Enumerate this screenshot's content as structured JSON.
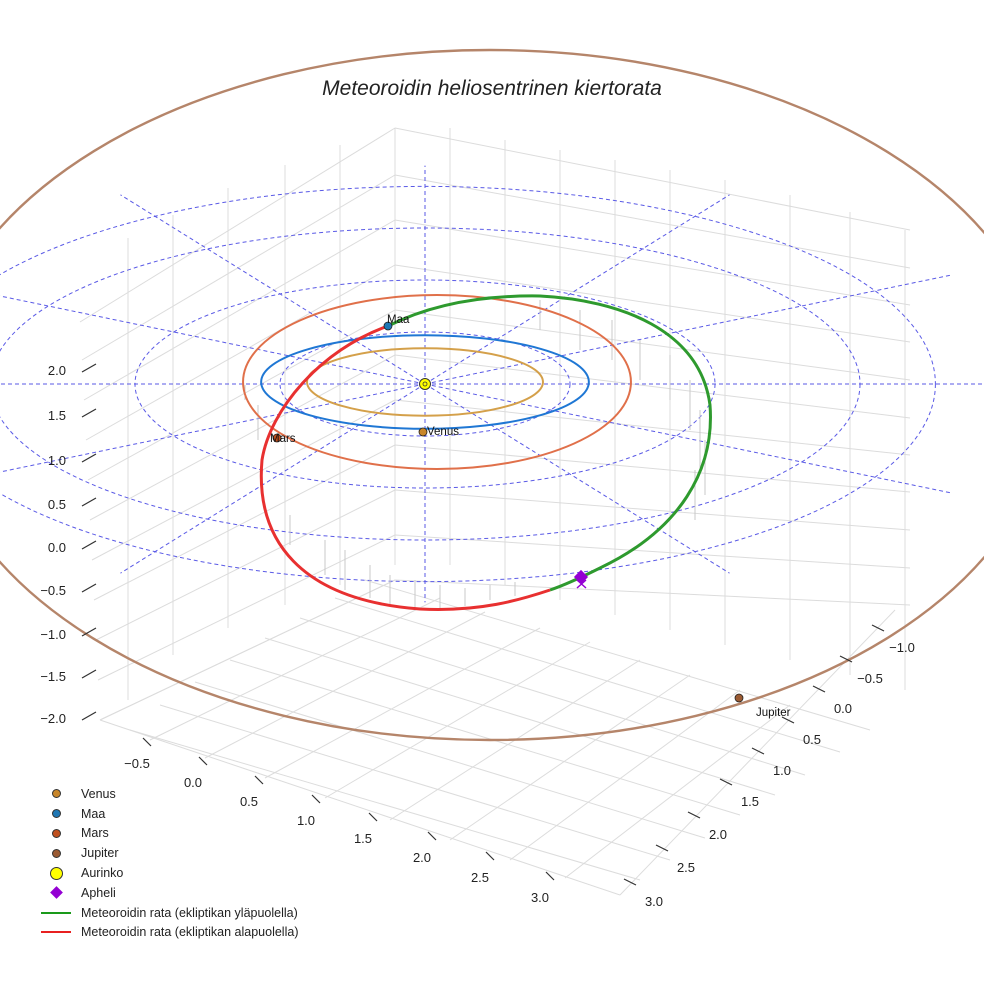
{
  "chart_data": {
    "type": "3d-orbit",
    "title": "Meteoroidin heliosentrinen kiertorata",
    "axes": {
      "x": {
        "ticks": [
          "−0.5",
          "0.0",
          "0.5",
          "1.0",
          "1.5",
          "2.0",
          "2.5",
          "3.0"
        ]
      },
      "y": {
        "ticks": [
          "−1.0",
          "−0.5",
          "0.0",
          "0.5",
          "1.0",
          "1.5",
          "2.0",
          "2.5",
          "3.0"
        ]
      },
      "z": {
        "ticks": [
          "−2.0",
          "−1.5",
          "−1.0",
          "−0.5",
          "0.0",
          "0.5",
          "1.0",
          "1.5",
          "2.0"
        ]
      },
      "grid": true
    },
    "ecliptic_grid_radii_au": [
      1,
      2,
      3,
      4
    ],
    "planet_orbits_au": [
      {
        "name": "Venus",
        "radius": 0.72,
        "color": "#d4a04a"
      },
      {
        "name": "Maa",
        "radius": 1.0,
        "color": "#1f77d4"
      },
      {
        "name": "Mars",
        "radius": 1.52,
        "color": "#e0704a"
      },
      {
        "name": "Jupiter",
        "radius": 5.2,
        "color": "#b5856a"
      }
    ],
    "planet_labels": [
      "Venus",
      "Maa",
      "Mars",
      "Jupiter"
    ],
    "meteoroid_orbit": {
      "above_ecliptic_label": "Meteoroidin rata (ekliptikan yläpuolella)",
      "below_ecliptic_label": "Meteoroidin rata (ekliptikan alapuolella)",
      "above_color": "#2e9a2e",
      "below_color": "#e83030"
    },
    "legend": [
      {
        "label": "Venus",
        "kind": "dot",
        "color": "#c8862a"
      },
      {
        "label": "Maa",
        "kind": "dot",
        "color": "#1f77b4"
      },
      {
        "label": "Mars",
        "kind": "dot",
        "color": "#c0501e"
      },
      {
        "label": "Jupiter",
        "kind": "dot",
        "color": "#9a5a32"
      },
      {
        "label": "Aurinko",
        "kind": "sun",
        "color": "#ffff00"
      },
      {
        "label": "Apheli",
        "kind": "diamond",
        "color": "#9400d3"
      },
      {
        "label": "Meteoroidin rata (ekliptikan yläpuolella)",
        "kind": "line",
        "color": "#1a9a1a"
      },
      {
        "label": "Meteoroidin rata (ekliptikan alapuolella)",
        "kind": "line",
        "color": "#e82020"
      }
    ]
  }
}
